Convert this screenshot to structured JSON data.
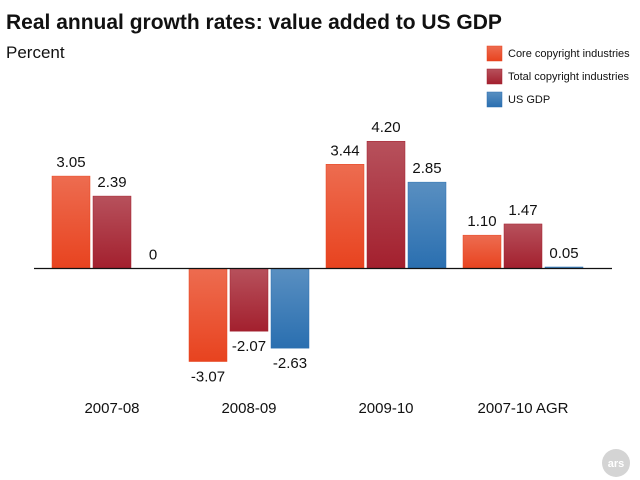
{
  "chart_data": {
    "type": "bar",
    "title": "Real annual growth rates: value added to US GDP",
    "subtitle": "Percent",
    "categories": [
      "2007-08",
      "2008-09",
      "2009-10",
      "2007-10 AGR"
    ],
    "series": [
      {
        "name": "Core copyright industries",
        "color": "#e8431f",
        "values": [
          3.05,
          -3.07,
          3.44,
          1.1
        ],
        "labels": [
          "3.05",
          "-3.07",
          "3.44",
          "1.10"
        ]
      },
      {
        "name": "Total copyright industries",
        "color": "#a3202e",
        "values": [
          2.39,
          -2.07,
          4.2,
          1.47
        ],
        "labels": [
          "2.39",
          "-2.07",
          "4.20",
          "1.47"
        ]
      },
      {
        "name": "US GDP",
        "color": "#2a6fb0",
        "values": [
          0,
          -2.63,
          2.85,
          0.05
        ],
        "labels": [
          "0",
          "-2.63",
          "2.85",
          "0.05"
        ]
      }
    ],
    "ylim": [
      -3.5,
      4.5
    ],
    "grid": false,
    "legend_position": "top-right"
  },
  "logo": {
    "text": "ars"
  }
}
